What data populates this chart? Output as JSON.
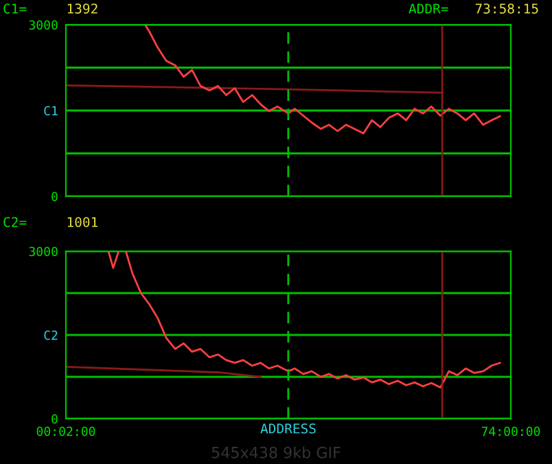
{
  "chart_data": [
    {
      "type": "line",
      "annotations": [
        "C1=",
        "1392",
        "ADDR=",
        "73:58:15"
      ],
      "xlim": [
        0.0333,
        74
      ],
      "ylim": [
        0,
        3000
      ],
      "yticks": [
        0,
        {
          "value": 750,
          "label": null
        },
        {
          "value": 1500,
          "label": "C1"
        },
        {
          "value": 2250,
          "label": null
        },
        3000
      ],
      "tick_labels": "y",
      "grid": "y",
      "series": [
        {
          "color": "#8b1a1a",
          "x": [
            0.0333,
            37.0,
            62.6
          ],
          "values": [
            1940,
            1870,
            1810
          ]
        },
        {
          "color": "#ff4040",
          "x": [
            13.2,
            13.9,
            15.3,
            16.7,
            18.2,
            19.6,
            21.0,
            22.4,
            23.9,
            25.3,
            26.7,
            28.1,
            29.5,
            31.0,
            32.4,
            33.8,
            35.2,
            37.0,
            38.1,
            39.5,
            40.9,
            42.4,
            43.8,
            45.2,
            46.6,
            48.0,
            49.5,
            50.9,
            52.3,
            53.7,
            55.2,
            56.6,
            58.0,
            59.4,
            60.8,
            62.3,
            63.7,
            65.1,
            66.5,
            67.9,
            69.4,
            70.8,
            72.2
          ],
          "values": [
            3000,
            2880,
            2600,
            2370,
            2290,
            2090,
            2210,
            1930,
            1850,
            1930,
            1770,
            1890,
            1650,
            1770,
            1610,
            1490,
            1570,
            1450,
            1530,
            1410,
            1290,
            1180,
            1250,
            1140,
            1250,
            1180,
            1100,
            1330,
            1210,
            1370,
            1450,
            1330,
            1530,
            1450,
            1570,
            1410,
            1530,
            1450,
            1330,
            1450,
            1250,
            1330,
            1400
          ]
        }
      ],
      "ref_lines": [
        {
          "axis": "x",
          "value": 37.0,
          "color": "#00c000",
          "line_style": "dashed"
        },
        {
          "axis": "x",
          "value": 62.6,
          "color": "#8b1a1a",
          "line_style": "solid"
        }
      ]
    },
    {
      "type": "line",
      "annotations": [
        "C2=",
        "1001",
        "545x438 9kb GIF"
      ],
      "xlabel": "ADDRESS",
      "xlim": [
        0.0333,
        74
      ],
      "xticks": [
        {
          "value": 0.0333,
          "label": "00:02:00"
        },
        {
          "value": 74,
          "label": "74:00:00"
        }
      ],
      "ylim": [
        0,
        3000
      ],
      "yticks": [
        0,
        {
          "value": 750,
          "label": null
        },
        {
          "value": 1500,
          "label": "C2"
        },
        {
          "value": 2250,
          "label": null
        },
        3000
      ],
      "grid": "y",
      "series": [
        {
          "color": "#8b1a1a",
          "x": [
            0.0333,
            25.3,
            32.4
          ],
          "values": [
            930,
            830,
            750
          ]
        },
        {
          "color": "#ff4040",
          "x": [
            7.1,
            7.9,
            8.8,
            9.4,
            10.0,
            11.1,
            12.5,
            13.9,
            15.3,
            16.7,
            18.2,
            19.6,
            21.0,
            22.4,
            23.9,
            25.3,
            26.7,
            28.1,
            29.5,
            31.0,
            32.4,
            33.8,
            35.2,
            37.0,
            38.1,
            39.5,
            40.9,
            42.4,
            43.8,
            45.2,
            46.6,
            48.0,
            49.5,
            50.9,
            52.3,
            53.7,
            55.2,
            56.6,
            58.0,
            59.4,
            60.8,
            62.3,
            63.7,
            65.1,
            66.5,
            67.9,
            69.4,
            70.8,
            72.2
          ],
          "values": [
            3000,
            2700,
            3000,
            null,
            3000,
            2600,
            2250,
            2050,
            1800,
            1450,
            1250,
            1350,
            1200,
            1250,
            1100,
            1150,
            1050,
            1000,
            1050,
            950,
            1000,
            900,
            950,
            850,
            900,
            800,
            850,
            750,
            800,
            720,
            780,
            700,
            740,
            650,
            700,
            620,
            680,
            600,
            650,
            580,
            640,
            560,
            850,
            780,
            900,
            820,
            850,
            950,
            1000
          ]
        }
      ],
      "ref_lines": [
        {
          "axis": "x",
          "value": 37.0,
          "color": "#00c000",
          "line_style": "dashed"
        },
        {
          "axis": "x",
          "value": 62.6,
          "color": "#8b1a1a",
          "line_style": "solid"
        }
      ]
    }
  ]
}
